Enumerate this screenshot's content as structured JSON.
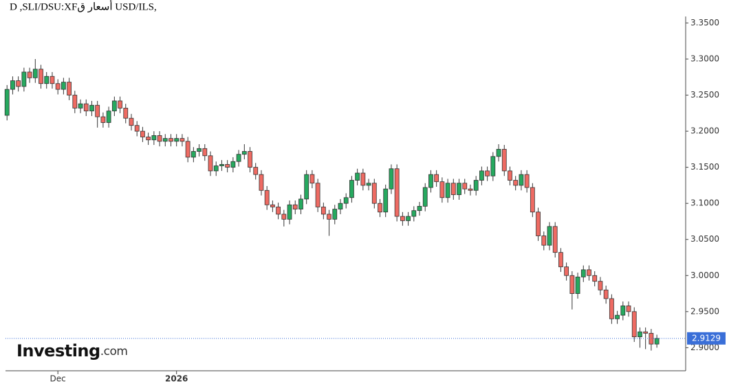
{
  "chart_data": {
    "type": "candlestick",
    "title": "D ,SLI/DSU:XFأسعار ق USD/ILS,",
    "brand": "Investing",
    "brand_suffix": ".com",
    "up_color": "#26a95f",
    "down_color": "#ee6b63",
    "ylim": [
      2.868,
      3.359
    ],
    "yticks": [
      {
        "value": 2.9,
        "label": "2.9000"
      },
      {
        "value": 2.95,
        "label": "2.9500"
      },
      {
        "value": 3.0,
        "label": "3.0000"
      },
      {
        "value": 3.05,
        "label": "3.0500"
      },
      {
        "value": 3.1,
        "label": "3.1000"
      },
      {
        "value": 3.15,
        "label": "3.1500"
      },
      {
        "value": 3.2,
        "label": "3.2000"
      },
      {
        "value": 3.25,
        "label": "3.2500"
      },
      {
        "value": 3.3,
        "label": "3.3000"
      },
      {
        "value": 3.35,
        "label": "3.3500"
      }
    ],
    "xlim": [
      -1,
      120.1
    ],
    "xticks": [
      {
        "value": 9,
        "label": "Dec"
      },
      {
        "value": 30,
        "label": "2026"
      }
    ],
    "last_price": 2.9129,
    "open": [
      3.222,
      3.258,
      3.27,
      3.262,
      3.282,
      3.274,
      3.286,
      3.266,
      3.276,
      3.266,
      3.258,
      3.268,
      3.25,
      3.232,
      3.238,
      3.228,
      3.236,
      3.22,
      3.212,
      3.228,
      3.242,
      3.232,
      3.218,
      3.208,
      3.2,
      3.192,
      3.188,
      3.194,
      3.186,
      3.19,
      3.186,
      3.19,
      3.186,
      3.164,
      3.172,
      3.176,
      3.166,
      3.145,
      3.152,
      3.154,
      3.15,
      3.158,
      3.168,
      3.172,
      3.15,
      3.14,
      3.118,
      3.098,
      3.095,
      3.085,
      3.078,
      3.098,
      3.092,
      3.106,
      3.14,
      3.128,
      3.095,
      3.085,
      3.078,
      3.092,
      3.1,
      3.108,
      3.132,
      3.142,
      3.125,
      3.128,
      3.1,
      3.088,
      3.12,
      3.148,
      3.082,
      3.076,
      3.082,
      3.09,
      3.096,
      3.122,
      3.14,
      3.13,
      3.108,
      3.128,
      3.112,
      3.128,
      3.12,
      3.118,
      3.132,
      3.145,
      3.138,
      3.165,
      3.175,
      3.145,
      3.132,
      3.125,
      3.14,
      3.122,
      3.088,
      3.055,
      3.042,
      3.068,
      3.032,
      3.012,
      3.0,
      2.975,
      2.998,
      3.008,
      3.0,
      2.992,
      2.98,
      2.968,
      2.94,
      2.945,
      2.958,
      2.95,
      2.915,
      2.922,
      2.92,
      2.905
    ],
    "high": [
      3.264,
      3.276,
      3.276,
      3.288,
      3.288,
      3.3,
      3.292,
      3.282,
      3.282,
      3.272,
      3.274,
      3.274,
      3.256,
      3.244,
      3.244,
      3.242,
      3.242,
      3.226,
      3.234,
      3.248,
      3.248,
      3.238,
      3.224,
      3.214,
      3.206,
      3.198,
      3.2,
      3.2,
      3.196,
      3.196,
      3.196,
      3.196,
      3.192,
      3.178,
      3.182,
      3.182,
      3.172,
      3.158,
      3.16,
      3.16,
      3.164,
      3.174,
      3.182,
      3.178,
      3.156,
      3.146,
      3.124,
      3.104,
      3.101,
      3.091,
      3.104,
      3.104,
      3.112,
      3.146,
      3.146,
      3.134,
      3.101,
      3.091,
      3.098,
      3.106,
      3.114,
      3.138,
      3.148,
      3.148,
      3.134,
      3.134,
      3.106,
      3.126,
      3.154,
      3.154,
      3.088,
      3.088,
      3.096,
      3.102,
      3.128,
      3.146,
      3.146,
      3.136,
      3.134,
      3.134,
      3.134,
      3.134,
      3.126,
      3.138,
      3.151,
      3.151,
      3.171,
      3.182,
      3.181,
      3.151,
      3.138,
      3.146,
      3.146,
      3.128,
      3.094,
      3.061,
      3.074,
      3.074,
      3.038,
      3.018,
      3.006,
      3.004,
      3.014,
      3.014,
      3.006,
      2.998,
      2.986,
      2.974,
      2.951,
      2.964,
      2.964,
      2.956,
      2.928,
      2.928,
      2.926,
      2.918
    ],
    "low": [
      3.215,
      3.251,
      3.255,
      3.255,
      3.267,
      3.267,
      3.259,
      3.259,
      3.259,
      3.251,
      3.251,
      3.243,
      3.225,
      3.225,
      3.221,
      3.221,
      3.205,
      3.205,
      3.205,
      3.221,
      3.225,
      3.211,
      3.201,
      3.193,
      3.185,
      3.181,
      3.181,
      3.179,
      3.179,
      3.179,
      3.179,
      3.179,
      3.157,
      3.157,
      3.165,
      3.159,
      3.138,
      3.138,
      3.145,
      3.143,
      3.143,
      3.151,
      3.161,
      3.143,
      3.133,
      3.111,
      3.091,
      3.088,
      3.078,
      3.068,
      3.071,
      3.085,
      3.085,
      3.099,
      3.121,
      3.088,
      3.078,
      3.055,
      3.071,
      3.085,
      3.093,
      3.101,
      3.125,
      3.118,
      3.118,
      3.093,
      3.081,
      3.081,
      3.113,
      3.075,
      3.069,
      3.069,
      3.075,
      3.083,
      3.089,
      3.115,
      3.123,
      3.101,
      3.101,
      3.105,
      3.105,
      3.113,
      3.111,
      3.111,
      3.125,
      3.131,
      3.131,
      3.158,
      3.138,
      3.125,
      3.118,
      3.118,
      3.115,
      3.081,
      3.048,
      3.035,
      3.035,
      3.025,
      3.005,
      2.993,
      2.953,
      2.968,
      2.991,
      2.993,
      2.985,
      2.973,
      2.961,
      2.933,
      2.933,
      2.938,
      2.943,
      2.908,
      2.9,
      2.898,
      2.896,
      2.9
    ],
    "close": [
      3.258,
      3.27,
      3.262,
      3.282,
      3.274,
      3.286,
      3.266,
      3.276,
      3.266,
      3.258,
      3.268,
      3.25,
      3.232,
      3.238,
      3.228,
      3.236,
      3.22,
      3.212,
      3.228,
      3.242,
      3.232,
      3.218,
      3.208,
      3.2,
      3.192,
      3.188,
      3.194,
      3.186,
      3.19,
      3.186,
      3.19,
      3.186,
      3.164,
      3.172,
      3.176,
      3.166,
      3.145,
      3.152,
      3.154,
      3.15,
      3.158,
      3.168,
      3.172,
      3.15,
      3.14,
      3.118,
      3.098,
      3.095,
      3.085,
      3.078,
      3.098,
      3.092,
      3.106,
      3.14,
      3.128,
      3.095,
      3.085,
      3.078,
      3.092,
      3.1,
      3.108,
      3.132,
      3.142,
      3.125,
      3.128,
      3.1,
      3.088,
      3.12,
      3.148,
      3.082,
      3.076,
      3.082,
      3.09,
      3.096,
      3.122,
      3.14,
      3.13,
      3.108,
      3.128,
      3.112,
      3.128,
      3.12,
      3.118,
      3.132,
      3.145,
      3.138,
      3.165,
      3.175,
      3.145,
      3.132,
      3.125,
      3.14,
      3.122,
      3.088,
      3.055,
      3.042,
      3.068,
      3.032,
      3.012,
      3.0,
      2.975,
      2.998,
      3.008,
      3.0,
      2.992,
      2.98,
      2.968,
      2.94,
      2.945,
      2.958,
      2.95,
      2.915,
      2.922,
      2.92,
      2.905,
      2.9129
    ]
  }
}
